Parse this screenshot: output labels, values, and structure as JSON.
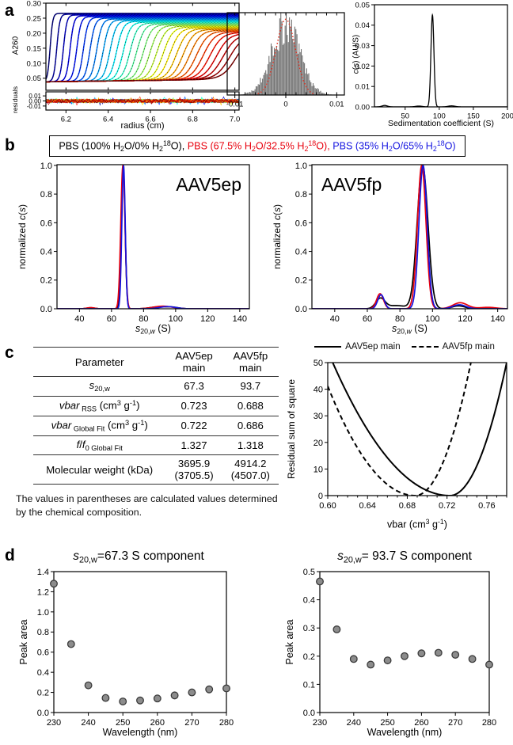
{
  "figure": {
    "panel_labels": {
      "a": "a",
      "b": "b",
      "c": "c",
      "d": "d"
    }
  },
  "panel_b": {
    "legend": {
      "parts": [
        {
          "text": "PBS (100% H<sub>2</sub>O/0% H<sub>2</sub><sup>18</sup>O)",
          "color": "#000000"
        },
        {
          "text": "PBS (67.5% H<sub>2</sub>O/32.5% H<sub>2</sub><sup>18</sup>O)",
          "color": "#e8000d"
        },
        {
          "text": "PBS (35% H<sub>2</sub>O/65% H<sub>2</sub><sup>18</sup>O)",
          "color": "#1414e0"
        }
      ]
    }
  },
  "panel_c": {
    "table": {
      "header": [
        "Parameter",
        "AAV5ep<br>main",
        "AAV5fp<br>main"
      ],
      "rows": [
        [
          "<i>s</i><sub>20,w</sub>",
          "67.3",
          "93.7"
        ],
        [
          "<i>vbar</i><sub> RSS</sub> (cm<sup>3</sup> g<sup>-1</sup>)",
          "0.723",
          "0.688"
        ],
        [
          "<i>vbar</i><sub> Global Fit</sub> (cm<sup>3</sup> g<sup>-1</sup>)",
          "0.722",
          "0.686"
        ],
        [
          "<i>f</i>/<i>f</i><sub>0 Global Fit</sub>",
          "1.327",
          "1.318"
        ],
        [
          "Molecular weight (kDa)",
          "3695.9<br>(3705.5)",
          "4914.2<br>(4507.0)"
        ]
      ]
    },
    "note": "The values in parentheses are calculated values determined by the chemical composition."
  },
  "chart_data": [
    {
      "id": "a_raw",
      "type": "scans",
      "xlabel": "radius (cm)",
      "ylabel": "A260",
      "ylabel2": "residuals",
      "xlim": [
        6.105,
        7.02
      ],
      "ylim": [
        0.01,
        0.3
      ],
      "xticks": [
        6.2,
        6.4,
        6.6,
        6.8,
        7.0
      ],
      "xtick_labels": [
        "6.2",
        "6.4",
        "6.6",
        "6.8",
        "7.0"
      ],
      "yticks": [
        0.05,
        0.1,
        0.15,
        0.2,
        0.25,
        0.3
      ],
      "ytick_labels": [
        "0.05",
        "0.10",
        "0.15",
        "0.20",
        "0.25",
        "0.30"
      ],
      "res_ylim": [
        -0.018,
        0.018
      ],
      "res_yticks": [
        -0.01,
        0,
        0.01
      ],
      "res_ytick_labels": [
        "-0.01",
        "0.00",
        "0.01"
      ],
      "n_scans": 29,
      "baseline_start": 0.038,
      "baseline_end": 0.047,
      "plateau_start": 0.266,
      "plateau_end": 0.192,
      "mid_start": 6.125,
      "mid_step": 0.0315,
      "bwidth_start": 0.0062,
      "bwidth_step": 0.00095,
      "residual_amplitude": 0.0038,
      "colormap": "jet"
    },
    {
      "id": "a_hist",
      "type": "hist",
      "xlim": [
        -0.0115,
        0.0115
      ],
      "xticks": [
        -0.01,
        0,
        0.01
      ],
      "xtick_labels": [
        "-0.01",
        "0",
        "0.01"
      ],
      "sigma": 0.0028,
      "fit_sigma": 0.0019,
      "n_bins": 90,
      "minor_step": 0.002,
      "bar_color": "#6b6b6b",
      "fit_color": "#e03020"
    },
    {
      "id": "a_cs",
      "type": "peaks",
      "xlabel": "Sedimentation coefficient (S)",
      "ylabel": "<i>c</i>(<i>s</i>) (AU/S)",
      "xlim": [
        5,
        200
      ],
      "ylim": [
        0,
        0.05
      ],
      "xticks": [
        50,
        100,
        150,
        200
      ],
      "xtick_labels": [
        "50",
        "100",
        "150",
        "200"
      ],
      "yticks": [
        0,
        0.01,
        0.02,
        0.03,
        0.04,
        0.05
      ],
      "ytick_labels": [
        "0.00",
        "0.01",
        "0.02",
        "0.03",
        "0.04",
        "0.05"
      ],
      "series": [
        {
          "name": "c(s)",
          "color": "#000000",
          "width": 1.3,
          "peaks": [
            {
              "center": 90,
              "height": 0.045,
              "sigma": 2.2
            },
            {
              "center": 20,
              "height": 0.0007,
              "sigma": 4
            },
            {
              "center": 70,
              "height": 0.0004,
              "sigma": 5
            },
            {
              "center": 118,
              "height": 0.0005,
              "sigma": 5
            }
          ]
        }
      ]
    },
    {
      "id": "b_ep",
      "type": "peaks",
      "title": "AAV5ep",
      "xlabel": "<i>s</i><sub>20,<i>w</i></sub> (S)",
      "ylabel": "normalized <i>c</i>(<i>s</i>)",
      "xlim": [
        26,
        146
      ],
      "ylim": [
        0,
        1.005
      ],
      "xticks": [
        40,
        60,
        80,
        100,
        120,
        140
      ],
      "xtick_labels": [
        "40",
        "60",
        "80",
        "100",
        "120",
        "140"
      ],
      "yticks": [
        0,
        0.2,
        0.4,
        0.6,
        0.8,
        1.0
      ],
      "ytick_labels": [
        "0.0",
        "0.2",
        "0.4",
        "0.6",
        "0.8",
        "1.0"
      ],
      "series": [
        {
          "name": "PBS 100% H2O",
          "color": "#000000",
          "width": 1.7,
          "peaks": [
            {
              "center": 67.3,
              "height": 1.0,
              "sigma": 1.15
            },
            {
              "center": 47,
              "height": 0.007,
              "sigma": 2.5
            },
            {
              "center": 89,
              "height": 0.013,
              "sigma": 5
            },
            {
              "center": 98,
              "height": 0.01,
              "sigma": 4
            }
          ]
        },
        {
          "name": "PBS 67.5% H2O",
          "color": "#e8000d",
          "width": 1.7,
          "peaks": [
            {
              "center": 67.1,
              "height": 1.0,
              "sigma": 1.3
            },
            {
              "center": 47,
              "height": 0.008,
              "sigma": 2.5
            },
            {
              "center": 92,
              "height": 0.018,
              "sigma": 6
            }
          ]
        },
        {
          "name": "PBS 35% H2O",
          "color": "#1414e0",
          "width": 1.7,
          "peaks": [
            {
              "center": 67.5,
              "height": 1.0,
              "sigma": 1.05
            },
            {
              "center": 95,
              "height": 0.015,
              "sigma": 5
            }
          ]
        }
      ]
    },
    {
      "id": "b_fp",
      "type": "peaks",
      "title": "AAV5fp",
      "xlabel": "<i>s</i><sub>20,<i>w</i></sub> (S)",
      "ylabel": "normalized <i>c</i>(<i>s</i>)",
      "xlim": [
        26,
        146
      ],
      "ylim": [
        0,
        1.005
      ],
      "xticks": [
        40,
        60,
        80,
        100,
        120,
        140
      ],
      "xtick_labels": [
        "40",
        "60",
        "80",
        "100",
        "120",
        "140"
      ],
      "yticks": [
        0,
        0.2,
        0.4,
        0.6,
        0.8,
        1.0
      ],
      "ytick_labels": [
        "0.0",
        "0.2",
        "0.4",
        "0.6",
        "0.8",
        "1.0"
      ],
      "series": [
        {
          "name": "PBS 100% H2O",
          "color": "#000000",
          "width": 1.7,
          "peaks": [
            {
              "center": 68,
              "height": 0.07,
              "sigma": 2.8
            },
            {
              "center": 78,
              "height": 0.022,
              "sigma": 6
            },
            {
              "center": 93.9,
              "height": 1.0,
              "sigma": 3.3
            },
            {
              "center": 116,
              "height": 0.02,
              "sigma": 4
            }
          ]
        },
        {
          "name": "PBS 67.5% H2O",
          "color": "#e8000d",
          "width": 1.7,
          "peaks": [
            {
              "center": 67.8,
              "height": 0.105,
              "sigma": 2.1
            },
            {
              "center": 93.4,
              "height": 1.0,
              "sigma": 2.6
            },
            {
              "center": 117,
              "height": 0.042,
              "sigma": 4.5
            },
            {
              "center": 134,
              "height": 0.01,
              "sigma": 5
            }
          ]
        },
        {
          "name": "PBS 35% H2O",
          "color": "#1414e0",
          "width": 1.7,
          "peaks": [
            {
              "center": 68.4,
              "height": 0.098,
              "sigma": 2.0
            },
            {
              "center": 94.2,
              "height": 1.0,
              "sigma": 2.5
            },
            {
              "center": 116.5,
              "height": 0.028,
              "sigma": 4
            }
          ]
        }
      ]
    },
    {
      "id": "c_rss",
      "type": "rss",
      "xlabel": "vbar (cm<sup>3</sup> g<sup>-1</sup>)",
      "ylabel": "Residual sum of square",
      "xlim": [
        0.6,
        0.78
      ],
      "ylim": [
        0,
        50
      ],
      "xticks": [
        0.6,
        0.64,
        0.68,
        0.72,
        0.76
      ],
      "xtick_labels": [
        "0.60",
        "0.64",
        "0.68",
        "0.72",
        "0.76"
      ],
      "xminor_step": 0.01,
      "yticks": [
        0,
        10,
        20,
        30,
        40,
        50
      ],
      "ytick_labels": [
        "0",
        "10",
        "20",
        "30",
        "40",
        "50"
      ],
      "series": [
        {
          "name": "AAV5ep main",
          "dash": "none",
          "vbar_min": 0.723,
          "left_span": 0.118,
          "right_span": 0.057
        },
        {
          "name": "AAV5fp main",
          "dash": "6,4",
          "vbar_min": 0.688,
          "left_span": 0.097,
          "right_span": 0.056
        }
      ]
    },
    {
      "id": "d_67",
      "type": "scatter",
      "title": "<i>s</i><sub>20,w</sub>=67.3 S component",
      "xlabel": "Wavelength (nm)",
      "ylabel": "Peak area",
      "xlim": [
        230,
        280
      ],
      "ylim": [
        0,
        1.4
      ],
      "xticks": [
        230,
        240,
        250,
        260,
        270,
        280
      ],
      "xtick_labels": [
        "230",
        "240",
        "250",
        "260",
        "270",
        "280"
      ],
      "yticks": [
        0,
        0.2,
        0.4,
        0.6,
        0.8,
        1.0,
        1.2,
        1.4
      ],
      "ytick_labels": [
        "0.0",
        "0.2",
        "0.4",
        "0.6",
        "0.8",
        "1.0",
        "1.2",
        "1.4"
      ],
      "x": [
        230,
        235,
        240,
        245,
        250,
        255,
        260,
        265,
        270,
        275,
        280
      ],
      "y": [
        1.28,
        0.68,
        0.27,
        0.145,
        0.11,
        0.12,
        0.14,
        0.17,
        0.2,
        0.23,
        0.24
      ],
      "marker": {
        "fill": "#8c8c8c",
        "stroke": "#3a3a3a",
        "r": 4.3
      }
    },
    {
      "id": "d_93",
      "type": "scatter",
      "title": "<i>s</i><sub>20,w</sub>= 93.7 S component",
      "xlabel": "Wavelength (nm)",
      "ylabel": "Peak area",
      "xlim": [
        230,
        280
      ],
      "ylim": [
        0,
        0.5
      ],
      "xticks": [
        230,
        240,
        250,
        260,
        270,
        280
      ],
      "xtick_labels": [
        "230",
        "240",
        "250",
        "260",
        "270",
        "280"
      ],
      "yticks": [
        0,
        0.1,
        0.2,
        0.3,
        0.4,
        0.5
      ],
      "ytick_labels": [
        "0.0",
        "0.1",
        "0.2",
        "0.3",
        "0.4",
        "0.5"
      ],
      "x": [
        230,
        235,
        240,
        245,
        250,
        255,
        260,
        265,
        270,
        275,
        280
      ],
      "y": [
        0.465,
        0.295,
        0.19,
        0.17,
        0.185,
        0.2,
        0.21,
        0.212,
        0.205,
        0.19,
        0.17
      ],
      "marker": {
        "fill": "#8c8c8c",
        "stroke": "#3a3a3a",
        "r": 4.3
      }
    }
  ]
}
